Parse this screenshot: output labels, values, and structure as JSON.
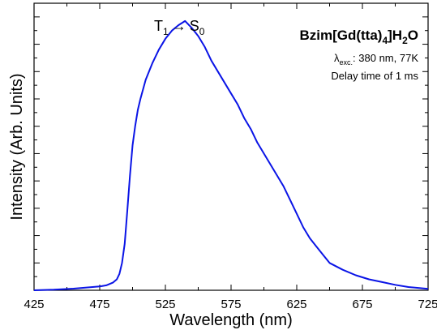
{
  "chart_data": {
    "type": "line",
    "xlabel": "Wavelength (nm)",
    "ylabel": "Intensity (Arb. Units)",
    "xlim": [
      425,
      725
    ],
    "ylim": [
      0,
      1.05
    ],
    "xticks": [
      "425",
      "475",
      "525",
      "575",
      "625",
      "675",
      "725"
    ],
    "yticks_labeled": false,
    "grid": false,
    "line_color": "#0a14e6",
    "series": [
      {
        "x": [
          425,
          440,
          455,
          465,
          475,
          480,
          485,
          488,
          490,
          492,
          494,
          496,
          498,
          500,
          502,
          504,
          506,
          510,
          515,
          520,
          525,
          530,
          535,
          540,
          545,
          550,
          555,
          560,
          565,
          570,
          575,
          580,
          585,
          590,
          595,
          600,
          605,
          610,
          615,
          620,
          625,
          630,
          635,
          640,
          645,
          650,
          660,
          670,
          680,
          690,
          700,
          710,
          725
        ],
        "y": [
          0.0,
          0.002,
          0.006,
          0.01,
          0.014,
          0.018,
          0.028,
          0.04,
          0.06,
          0.1,
          0.17,
          0.29,
          0.42,
          0.53,
          0.6,
          0.66,
          0.7,
          0.77,
          0.83,
          0.88,
          0.92,
          0.95,
          0.97,
          0.985,
          0.96,
          0.93,
          0.89,
          0.84,
          0.8,
          0.76,
          0.72,
          0.68,
          0.63,
          0.59,
          0.54,
          0.5,
          0.46,
          0.42,
          0.38,
          0.33,
          0.28,
          0.23,
          0.19,
          0.16,
          0.13,
          0.1,
          0.075,
          0.055,
          0.04,
          0.03,
          0.02,
          0.012,
          0.005
        ]
      }
    ],
    "annotations": {
      "peak_label_main": "T",
      "peak_label_sub1": "1",
      "peak_label_arrow": "→",
      "peak_label_s": "S",
      "peak_label_sub0": "0",
      "compound_prefix": "Bzim[Gd(tta)",
      "compound_sub4": "4",
      "compound_mid": "]H",
      "compound_sub2": "2",
      "compound_suffix": "O",
      "lambda_symbol": "λ",
      "lambda_sub": "exc.",
      "lambda_value": ": 380 nm, 77K",
      "delay_text": "Delay time of 1 ms"
    }
  }
}
